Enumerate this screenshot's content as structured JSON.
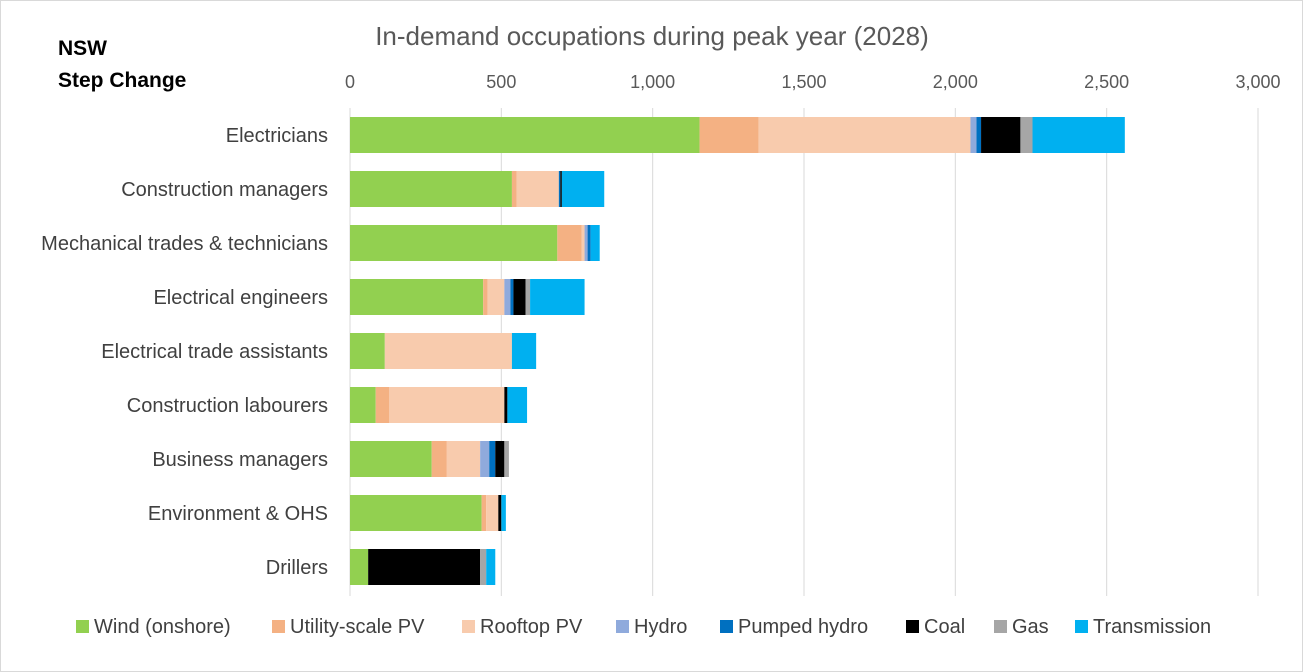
{
  "chart_data": {
    "type": "bar",
    "orientation": "horizontal",
    "stacked": true,
    "title": "In-demand occupations during peak year (2028)",
    "region_label": "NSW",
    "scenario_label": "Step Change",
    "xlabel": "",
    "ylabel": "",
    "xlim": [
      0,
      3000
    ],
    "ticks": [
      0,
      500,
      1000,
      1500,
      2000,
      2500,
      3000
    ],
    "tick_labels": [
      "0",
      "500",
      "1,000",
      "1,500",
      "2,000",
      "2,500",
      "3,000"
    ],
    "tick_position": "top",
    "grid": true,
    "legend_position": "bottom",
    "categories": [
      "Electricians",
      "Construction managers",
      "Mechanical trades & technicians",
      "Electrical engineers",
      "Electrical trade assistants",
      "Construction labourers",
      "Business managers",
      "Environment & OHS",
      "Drillers"
    ],
    "series": [
      {
        "name": "Wind (onshore)",
        "color": "#92d050",
        "values": [
          1155,
          535,
          685,
          440,
          115,
          85,
          270,
          435,
          60
        ]
      },
      {
        "name": "Utility-scale PV",
        "color": "#f4b183",
        "values": [
          195,
          15,
          80,
          15,
          0,
          45,
          50,
          15,
          0
        ]
      },
      {
        "name": "Rooftop PV",
        "color": "#f8cbad",
        "values": [
          700,
          140,
          10,
          55,
          420,
          380,
          110,
          40,
          0
        ]
      },
      {
        "name": "Hydro",
        "color": "#8faadc",
        "values": [
          20,
          0,
          10,
          20,
          0,
          0,
          30,
          0,
          0
        ]
      },
      {
        "name": "Pumped hydro",
        "color": "#0070c0",
        "values": [
          15,
          5,
          10,
          10,
          0,
          0,
          20,
          0,
          0
        ]
      },
      {
        "name": "Coal",
        "color": "#000000",
        "values": [
          130,
          5,
          0,
          40,
          0,
          10,
          30,
          10,
          370
        ]
      },
      {
        "name": "Gas",
        "color": "#a6a6a6",
        "values": [
          40,
          0,
          0,
          15,
          0,
          0,
          15,
          0,
          20
        ]
      },
      {
        "name": "Transmission",
        "color": "#00b0f0",
        "values": [
          305,
          140,
          30,
          180,
          80,
          65,
          0,
          15,
          30
        ]
      }
    ]
  }
}
